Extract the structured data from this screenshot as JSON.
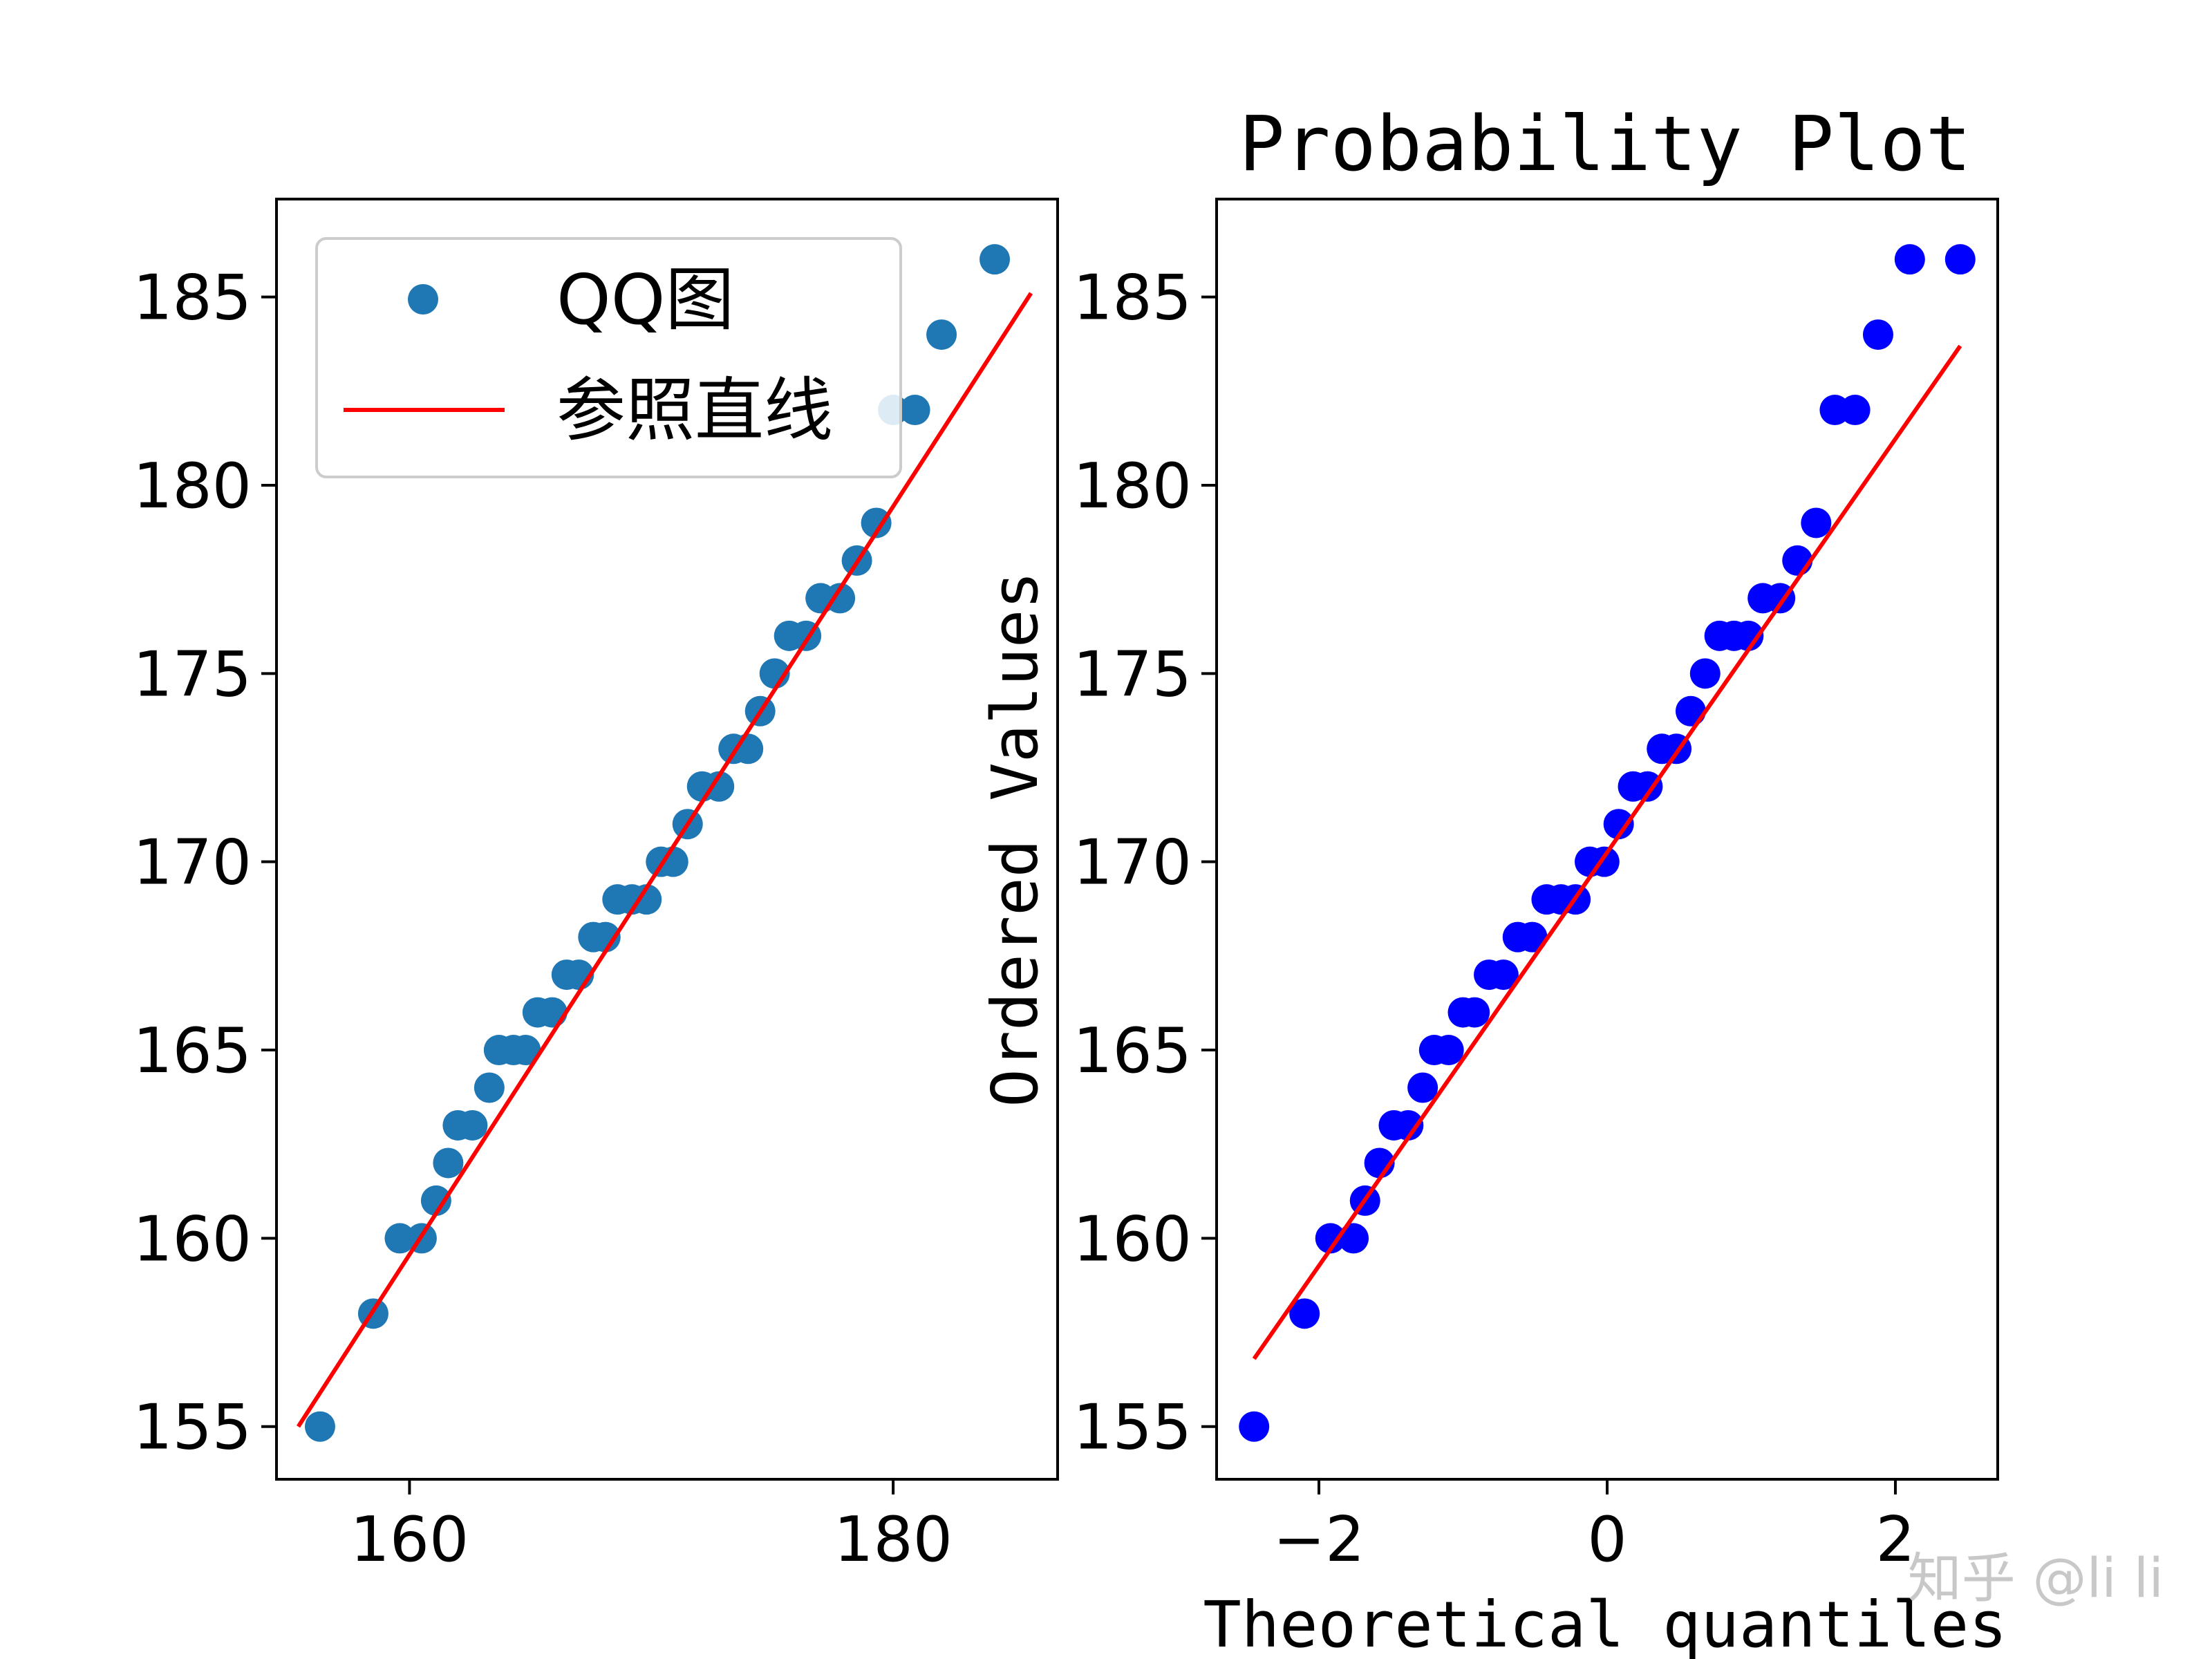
{
  "chart_data": [
    {
      "type": "scatter",
      "title": "",
      "xlabel": "",
      "ylabel": "",
      "xlim": [
        154.5,
        186.8
      ],
      "ylim": [
        153.6,
        187.6
      ],
      "x_ticks": [
        160,
        180
      ],
      "y_ticks": [
        155,
        160,
        165,
        170,
        175,
        180,
        185
      ],
      "legend": {
        "placement": "upper-left",
        "entries": [
          {
            "label": "QQ图",
            "kind": "marker"
          },
          {
            "label": "参照直线",
            "kind": "line"
          }
        ]
      },
      "colors": {
        "points": "#1f77b4",
        "line": "#ff0000"
      },
      "series": [
        {
          "name": "QQ图",
          "x": [
            156.3,
            158.5,
            159.6,
            160.5,
            161.1,
            161.6,
            162.0,
            162.6,
            163.3,
            163.7,
            164.3,
            164.8,
            165.3,
            165.9,
            166.5,
            167.0,
            167.6,
            168.1,
            168.6,
            169.2,
            169.8,
            170.4,
            170.9,
            171.5,
            172.1,
            172.8,
            173.4,
            174.0,
            174.5,
            175.1,
            175.7,
            176.4,
            177.0,
            177.8,
            178.5,
            179.3,
            180.0,
            180.9,
            182.0,
            184.2
          ],
          "y": [
            155,
            158,
            160,
            160,
            161,
            162,
            163,
            163,
            164,
            165,
            165,
            165,
            166,
            166,
            167,
            167,
            168,
            168,
            169,
            169,
            169,
            170,
            170,
            171,
            172,
            172,
            173,
            173,
            174,
            175,
            176,
            176,
            177,
            177,
            178,
            179,
            182,
            182,
            184,
            186
          ]
        },
        {
          "name": "参照直线",
          "x": [
            155.4,
            185.7
          ],
          "y": [
            155.0,
            185.1
          ]
        }
      ]
    },
    {
      "type": "scatter",
      "title": "Probability Plot",
      "xlabel": "Theoretical quantiles",
      "ylabel": "Ordered Values",
      "xlim": [
        -2.71,
        2.71
      ],
      "ylim": [
        153.6,
        187.6
      ],
      "x_ticks": [
        -2,
        0,
        2
      ],
      "y_ticks": [
        155,
        160,
        165,
        170,
        175,
        180,
        185
      ],
      "colors": {
        "points": "#0000ff",
        "line": "#ff0000"
      },
      "series": [
        {
          "name": "",
          "x": [
            -2.45,
            -2.1,
            -1.92,
            -1.76,
            -1.68,
            -1.58,
            -1.48,
            -1.38,
            -1.28,
            -1.2,
            -1.1,
            -1.0,
            -0.92,
            -0.82,
            -0.72,
            -0.62,
            -0.52,
            -0.42,
            -0.32,
            -0.22,
            -0.12,
            -0.02,
            0.08,
            0.18,
            0.28,
            0.38,
            0.48,
            0.58,
            0.68,
            0.78,
            0.88,
            0.98,
            1.08,
            1.2,
            1.32,
            1.45,
            1.58,
            1.72,
            1.88,
            2.1,
            2.45
          ],
          "y": [
            155,
            158,
            160,
            160,
            161,
            162,
            163,
            163,
            164,
            165,
            165,
            166,
            166,
            167,
            167,
            168,
            168,
            169,
            169,
            169,
            170,
            170,
            171,
            172,
            172,
            173,
            173,
            174,
            175,
            176,
            176,
            176,
            177,
            177,
            178,
            179,
            182,
            182,
            184,
            186,
            186
          ]
        },
        {
          "name": "",
          "x": [
            -2.45,
            2.45
          ],
          "y": [
            156.8,
            183.7
          ]
        }
      ]
    }
  ],
  "watermark": "知乎 @li li"
}
